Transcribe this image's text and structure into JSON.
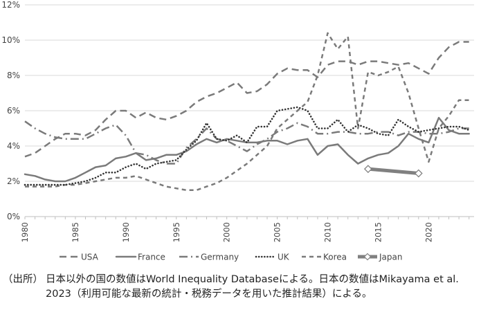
{
  "chart_data": {
    "type": "line",
    "x": [
      1980,
      1981,
      1982,
      1983,
      1984,
      1985,
      1986,
      1987,
      1988,
      1989,
      1990,
      1991,
      1992,
      1993,
      1994,
      1995,
      1996,
      1997,
      1998,
      1999,
      2000,
      2001,
      2002,
      2003,
      2004,
      2005,
      2006,
      2007,
      2008,
      2009,
      2010,
      2011,
      2012,
      2013,
      2014,
      2015,
      2016,
      2017,
      2018,
      2019,
      2020,
      2021,
      2022,
      2023,
      2024
    ],
    "xticks": [
      "1980",
      "1985",
      "1990",
      "1995",
      "2000",
      "2005",
      "2010",
      "2015",
      "2020"
    ],
    "xtick_values": [
      1980,
      1985,
      1990,
      1995,
      2000,
      2005,
      2010,
      2015,
      2020
    ],
    "yticks": [
      "0%",
      "2%",
      "4%",
      "6%",
      "8%",
      "10%",
      "12%"
    ],
    "ytick_values": [
      0,
      2,
      4,
      6,
      8,
      10,
      12
    ],
    "ylim": [
      0,
      12
    ],
    "xlim": [
      1980,
      2024.5
    ],
    "grid": "horizontal",
    "legend_position": "bottom",
    "series": [
      {
        "name": "USA",
        "style": "longdash",
        "color": "#7a7a7a",
        "values": [
          3.4,
          3.6,
          4.0,
          4.4,
          4.7,
          4.7,
          4.6,
          4.9,
          5.5,
          6.0,
          6.0,
          5.6,
          5.9,
          5.6,
          5.5,
          5.7,
          6.0,
          6.5,
          6.8,
          7.0,
          7.3,
          7.6,
          7.0,
          7.1,
          7.5,
          8.1,
          8.4,
          8.3,
          8.3,
          7.9,
          8.6,
          8.8,
          8.8,
          8.6,
          8.8,
          8.8,
          8.7,
          8.6,
          8.7,
          8.4,
          8.1,
          9.0,
          9.6,
          9.9,
          9.9
        ]
      },
      {
        "name": "France",
        "style": "solid",
        "color": "#7a7a7a",
        "values": [
          2.4,
          2.3,
          2.1,
          2.0,
          2.0,
          2.2,
          2.5,
          2.8,
          2.9,
          3.3,
          3.4,
          3.6,
          3.2,
          3.3,
          3.5,
          3.5,
          3.7,
          4.1,
          4.4,
          4.2,
          4.4,
          4.3,
          4.2,
          4.2,
          4.3,
          4.3,
          4.1,
          4.3,
          4.4,
          3.5,
          4.0,
          4.1,
          3.5,
          3.0,
          3.3,
          3.5,
          3.6,
          4.0,
          4.7,
          4.4,
          4.2,
          5.6,
          4.9,
          4.7,
          4.7
        ]
      },
      {
        "name": "Germany",
        "style": "dashdot",
        "color": "#7a7a7a",
        "values": [
          5.4,
          5.0,
          4.7,
          4.5,
          4.4,
          4.4,
          4.4,
          4.7,
          5.0,
          5.2,
          4.6,
          3.6,
          3.5,
          3.2,
          3.0,
          3.0,
          3.9,
          4.4,
          5.0,
          4.4,
          4.3,
          4.0,
          3.7,
          4.1,
          4.4,
          4.8,
          5.0,
          5.3,
          5.1,
          4.7,
          4.7,
          4.8,
          4.8,
          4.7,
          4.7,
          4.8,
          4.8,
          4.6,
          4.8,
          4.8,
          4.7,
          4.7,
          4.8,
          5.0,
          5.0
        ]
      },
      {
        "name": "UK",
        "style": "dotted",
        "color": "#333333",
        "values": [
          1.8,
          1.8,
          1.8,
          1.8,
          1.8,
          1.9,
          2.0,
          2.2,
          2.5,
          2.5,
          2.8,
          3.0,
          2.7,
          3.0,
          3.1,
          3.2,
          3.8,
          4.3,
          5.3,
          4.4,
          4.3,
          4.6,
          4.2,
          5.1,
          5.1,
          6.0,
          6.1,
          6.2,
          6.0,
          5.0,
          5.0,
          5.5,
          4.8,
          5.2,
          5.0,
          4.7,
          4.6,
          5.5,
          5.1,
          4.8,
          4.9,
          5.0,
          5.1,
          5.1,
          4.9
        ]
      },
      {
        "name": "Korea",
        "style": "shortdash",
        "color": "#7a7a7a",
        "values": [
          1.7,
          1.7,
          1.7,
          1.7,
          1.8,
          1.8,
          1.9,
          2.0,
          2.1,
          2.2,
          2.2,
          2.3,
          2.1,
          1.9,
          1.7,
          1.6,
          1.5,
          1.5,
          1.7,
          1.9,
          2.2,
          2.6,
          3.0,
          3.5,
          4.0,
          5.0,
          5.5,
          6.0,
          6.5,
          8.0,
          10.4,
          9.5,
          10.2,
          5.0,
          8.2,
          8.0,
          8.2,
          8.5,
          7.0,
          5.0,
          3.1,
          5.0,
          5.7,
          6.6,
          6.6
        ]
      },
      {
        "name": "Japan",
        "style": "thick-diamond",
        "color": "#808080",
        "points": [
          [
            2014,
            2.7
          ],
          [
            2019,
            2.45
          ]
        ]
      }
    ]
  },
  "note": {
    "label": "（出所）",
    "text": "日本以外の国の数値はWorld Inequality Databaseによる。日本の数値はMikayama et al. 2023（利用可能な最新の統計・税務データを用いた推計結果）による。"
  }
}
